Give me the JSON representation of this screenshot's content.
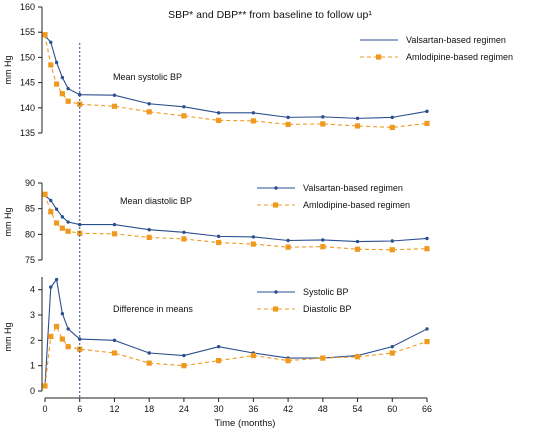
{
  "chart_data": {
    "type": "line",
    "title": "SBP* and DBP** from baseline to follow up¹",
    "xlabel": "Time (months)",
    "x_ticks": [
      0,
      6,
      12,
      18,
      24,
      30,
      36,
      42,
      48,
      54,
      60,
      66
    ],
    "reference_line_x": 6,
    "colors": {
      "valsartan": "#2b4e8f",
      "amlodipine": "#ef9a1f",
      "axis": "#222222"
    },
    "panels": [
      {
        "annotation": "Mean systolic BP",
        "ylabel": "mm Hg",
        "ylim": [
          135,
          160
        ],
        "y_ticks": [
          135,
          140,
          145,
          150,
          155,
          160
        ],
        "legend_position": "top-right",
        "series": [
          {
            "name": "Valsartan-based regimen",
            "style": "solid",
            "marker": "dot",
            "x": [
              0,
              1,
              2,
              3,
              4,
              6,
              12,
              18,
              24,
              30,
              36,
              42,
              48,
              54,
              60,
              66
            ],
            "y": [
              154.3,
              153.0,
              149.0,
              146.0,
              143.8,
              142.6,
              142.5,
              140.8,
              140.2,
              139.0,
              139.0,
              138.1,
              138.2,
              137.9,
              138.1,
              139.3
            ]
          },
          {
            "name": "Amlodipine-based regimen",
            "style": "dashed",
            "marker": "square",
            "x": [
              0,
              1,
              2,
              3,
              4,
              6,
              12,
              18,
              24,
              30,
              36,
              42,
              48,
              54,
              60,
              66
            ],
            "y": [
              154.5,
              148.5,
              144.7,
              142.8,
              141.3,
              140.7,
              140.3,
              139.2,
              138.4,
              137.5,
              137.4,
              136.7,
              136.8,
              136.4,
              136.1,
              136.9
            ]
          }
        ]
      },
      {
        "annotation": "Mean diastolic BP",
        "ylabel": "mm Hg",
        "ylim": [
          75,
          90
        ],
        "y_ticks": [
          75,
          80,
          85,
          90
        ],
        "legend_position": "top-right",
        "series": [
          {
            "name": "Valsartan-based regimen",
            "style": "solid",
            "marker": "dot",
            "x": [
              0,
              1,
              2,
              3,
              4,
              6,
              12,
              18,
              24,
              30,
              36,
              42,
              48,
              54,
              60,
              66
            ],
            "y": [
              87.6,
              86.6,
              84.9,
              83.4,
              82.4,
              81.9,
              81.9,
              80.9,
              80.4,
              79.6,
              79.5,
              78.8,
              78.9,
              78.6,
              78.7,
              79.2
            ]
          },
          {
            "name": "Amlodipine-based regimen",
            "style": "dashed",
            "marker": "square",
            "x": [
              0,
              1,
              2,
              3,
              4,
              6,
              12,
              18,
              24,
              30,
              36,
              42,
              48,
              54,
              60,
              66
            ],
            "y": [
              87.8,
              84.4,
              82.2,
              81.2,
              80.6,
              80.2,
              80.1,
              79.4,
              79.1,
              78.4,
              78.1,
              77.5,
              77.6,
              77.1,
              77.0,
              77.2
            ]
          }
        ]
      },
      {
        "annotation": "Difference in means",
        "ylabel": "mm Hg",
        "ylim": [
          0,
          4.5
        ],
        "y_ticks": [
          0,
          1,
          2,
          3,
          4
        ],
        "legend_position": "top-right",
        "series": [
          {
            "name": "Systolic BP",
            "style": "solid",
            "marker": "dot",
            "x": [
              0,
              1,
              2,
              3,
              4,
              6,
              12,
              18,
              24,
              30,
              36,
              42,
              48,
              54,
              60,
              66
            ],
            "y": [
              0.2,
              4.1,
              4.4,
              3.05,
              2.45,
              2.05,
              2.0,
              1.5,
              1.4,
              1.75,
              1.5,
              1.3,
              1.3,
              1.4,
              1.75,
              2.45
            ]
          },
          {
            "name": "Diastolic BP",
            "style": "dashed",
            "marker": "square",
            "x": [
              0,
              1,
              2,
              3,
              4,
              6,
              12,
              18,
              24,
              30,
              36,
              42,
              48,
              54,
              60,
              66
            ],
            "y": [
              0.2,
              2.15,
              2.55,
              2.05,
              1.75,
              1.65,
              1.5,
              1.1,
              1.0,
              1.2,
              1.4,
              1.2,
              1.3,
              1.35,
              1.5,
              1.95
            ]
          }
        ]
      }
    ]
  }
}
